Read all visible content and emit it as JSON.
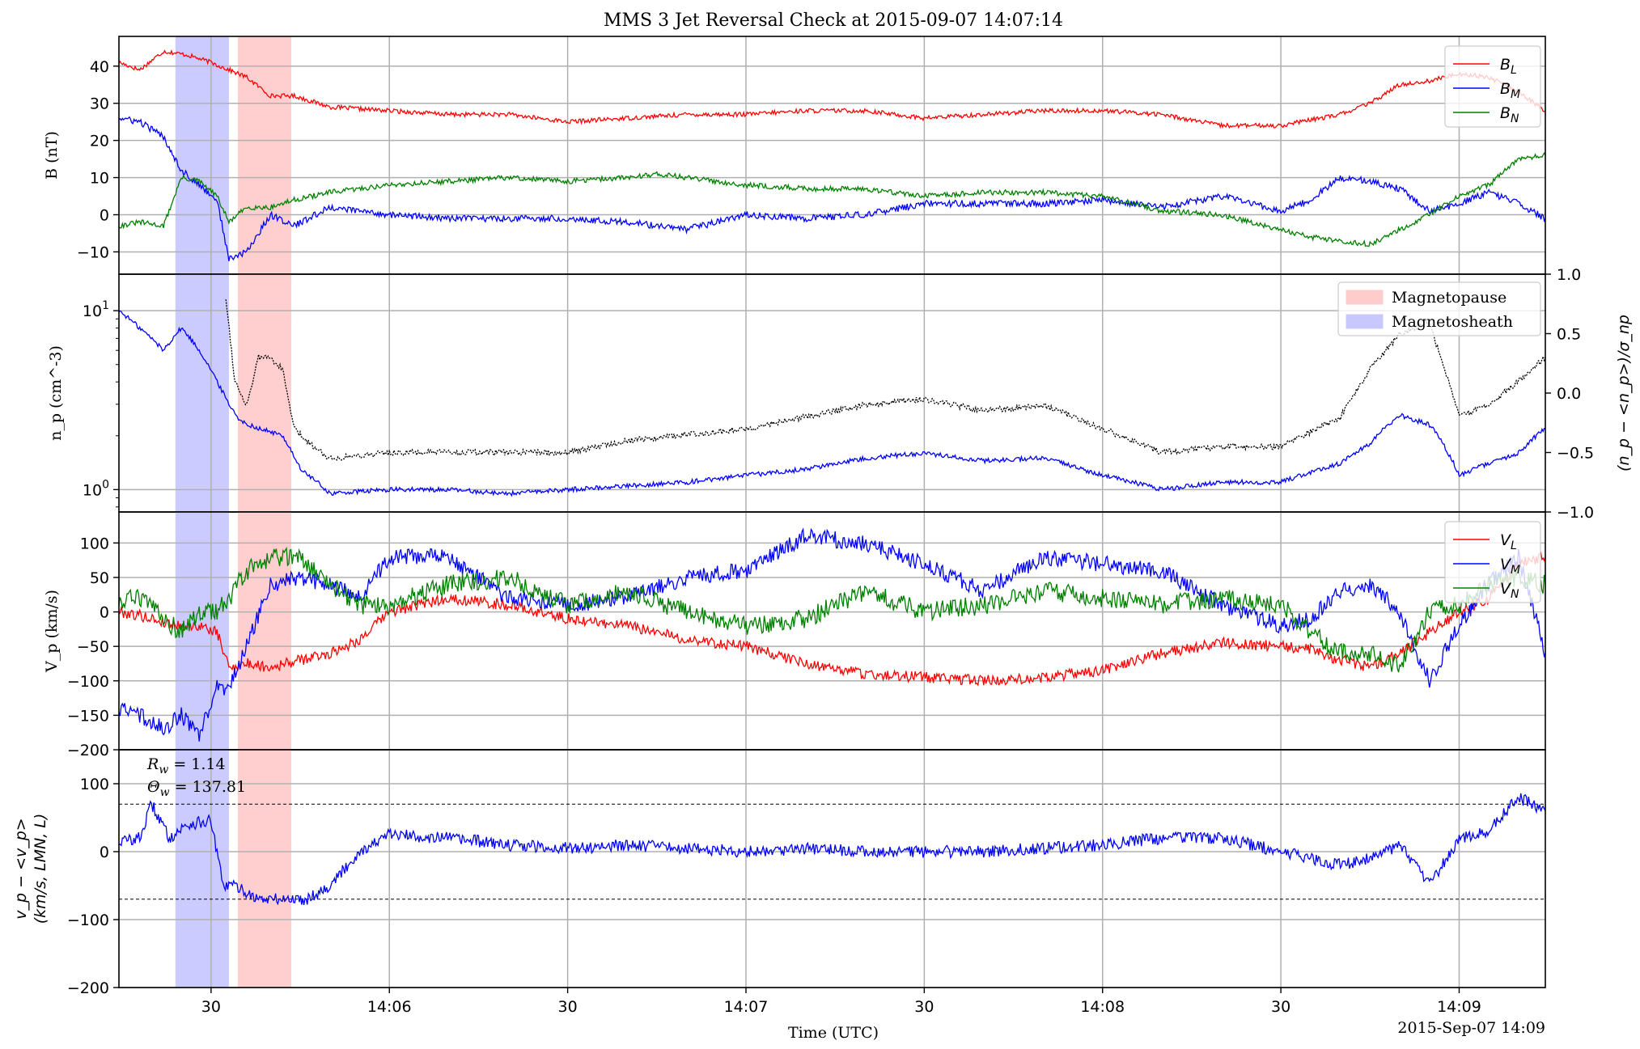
{
  "colors": {
    "red": "#ff0000",
    "blue": "#0000ff",
    "green": "#008000",
    "black": "#000000",
    "grid": "#b0b0b0",
    "magnetopause_fill": "#ffcccc",
    "magnetosheath_fill": "#c8c8ff"
  },
  "chart_data": {
    "type": "line",
    "title": "MMS 3 Jet Reversal Check at 2015-09-07 14:07:14",
    "xlabel": "Time (UTC)",
    "date_label": "2015-Sep-07 14:09",
    "x_range": [
      "14:05:14.5",
      "14:09:14.5"
    ],
    "x_ticks": [
      {
        "t": "14:05:30",
        "label": "30"
      },
      {
        "t": "14:06:00",
        "label": "14:06"
      },
      {
        "t": "14:06:30",
        "label": "30"
      },
      {
        "t": "14:07:00",
        "label": "14:07"
      },
      {
        "t": "14:07:30",
        "label": "30"
      },
      {
        "t": "14:08:00",
        "label": "14:08"
      },
      {
        "t": "14:08:30",
        "label": "30"
      },
      {
        "t": "14:09:00",
        "label": "14:09"
      }
    ],
    "shaded_regions": [
      {
        "name": "Magnetosheath",
        "start": "14:05:24",
        "end": "14:05:33",
        "color": "#c8c8ff"
      },
      {
        "name": "Magnetopause",
        "start": "14:05:34.5",
        "end": "14:05:43.5",
        "color": "#ffcccc"
      }
    ],
    "legend_regions": {
      "labels": [
        "Magnetopause",
        "Magnetosheath"
      ],
      "placement": "top-right of panel 2"
    },
    "panels": [
      {
        "ylabel": "B (nT)",
        "yscale": "linear",
        "ylim": [
          -16,
          48
        ],
        "yticks": [
          "−10",
          "0",
          "10",
          "20",
          "30",
          "40"
        ],
        "yticks_values": [
          -10,
          0,
          10,
          20,
          30,
          40
        ],
        "legend": {
          "placement": "top-right",
          "entries": [
            "B_L",
            "B_M",
            "B_N"
          ]
        },
        "series": [
          {
            "name": "B_L",
            "color": "#ff0000",
            "x": [
              "14:05:14.5",
              "14:05:18",
              "14:05:22",
              "14:05:26",
              "14:05:30",
              "14:05:33",
              "14:05:36",
              "14:05:40",
              "14:05:44",
              "14:05:50",
              "14:06:00",
              "14:06:10",
              "14:06:20",
              "14:06:30",
              "14:06:40",
              "14:06:50",
              "14:07:00",
              "14:07:10",
              "14:07:20",
              "14:07:30",
              "14:07:40",
              "14:07:50",
              "14:08:00",
              "14:08:10",
              "14:08:20",
              "14:08:30",
              "14:08:40",
              "14:08:45",
              "14:08:50",
              "14:08:55",
              "14:09:00",
              "14:09:05",
              "14:09:10",
              "14:09:14.5"
            ],
            "y": [
              41,
              39,
              44,
              43,
              41,
              39,
              37,
              32,
              32,
              29,
              28,
              27,
              27,
              25,
              26,
              27,
              27,
              28,
              28,
              26,
              27,
              28,
              28,
              27,
              24,
              24,
              27,
              30,
              35,
              36,
              38,
              37,
              33,
              28
            ]
          },
          {
            "name": "B_M",
            "color": "#0000ff",
            "x": [
              "14:05:14.5",
              "14:05:18",
              "14:05:22",
              "14:05:25",
              "14:05:28",
              "14:05:31",
              "14:05:33",
              "14:05:36",
              "14:05:40",
              "14:05:44",
              "14:05:50",
              "14:06:00",
              "14:06:10",
              "14:06:20",
              "14:06:30",
              "14:06:40",
              "14:06:50",
              "14:07:00",
              "14:07:10",
              "14:07:20",
              "14:07:30",
              "14:07:40",
              "14:07:50",
              "14:08:00",
              "14:08:10",
              "14:08:20",
              "14:08:30",
              "14:08:35",
              "14:08:40",
              "14:08:45",
              "14:08:50",
              "14:08:55",
              "14:09:00",
              "14:09:05",
              "14:09:10",
              "14:09:14.5"
            ],
            "y": [
              26,
              25,
              21,
              12,
              8,
              4,
              -12,
              -10,
              0,
              -3,
              2,
              0,
              -1,
              -1,
              -1,
              -2,
              -4,
              0,
              -1,
              0,
              3,
              3,
              3,
              4,
              2,
              5,
              1,
              4,
              10,
              9,
              7,
              1,
              3,
              6,
              3,
              -1
            ]
          },
          {
            "name": "B_N",
            "color": "#008000",
            "x": [
              "14:05:14.5",
              "14:05:18",
              "14:05:22",
              "14:05:25",
              "14:05:28",
              "14:05:31",
              "14:05:33",
              "14:05:36",
              "14:05:40",
              "14:05:44",
              "14:05:50",
              "14:06:00",
              "14:06:10",
              "14:06:20",
              "14:06:30",
              "14:06:40",
              "14:06:45",
              "14:06:50",
              "14:07:00",
              "14:07:10",
              "14:07:20",
              "14:07:30",
              "14:07:40",
              "14:07:50",
              "14:08:00",
              "14:08:10",
              "14:08:20",
              "14:08:30",
              "14:08:35",
              "14:08:40",
              "14:08:45",
              "14:08:50",
              "14:08:55",
              "14:09:00",
              "14:09:05",
              "14:09:10",
              "14:09:14.5"
            ],
            "y": [
              -3,
              -2,
              -3,
              10,
              9,
              5,
              -2,
              2,
              2,
              4,
              6,
              8,
              9,
              10,
              9,
              10,
              11,
              10,
              8,
              7,
              7,
              5,
              6,
              6,
              5,
              1,
              0,
              -4,
              -6,
              -7,
              -8,
              -4,
              0,
              5,
              8,
              15,
              16
            ]
          }
        ]
      },
      {
        "ylabel": "n_p (cm^-3)",
        "yscale": "log",
        "ylim": [
          0.75,
          16
        ],
        "yticks": [
          "10^0",
          "10^1"
        ],
        "yticks_values": [
          1,
          10
        ],
        "y2label": "(n_p − <n_p>)/σ_np",
        "y2lim": [
          -1.0,
          1.0
        ],
        "y2ticks": [
          "−1.0",
          "−0.5",
          "0.0",
          "0.5",
          "1.0"
        ],
        "y2ticks_values": [
          -1.0,
          -0.5,
          0.0,
          0.5,
          1.0
        ],
        "series": [
          {
            "name": "n_p",
            "color": "#0000ff",
            "x": [
              "14:05:14.5",
              "14:05:18",
              "14:05:22",
              "14:05:25",
              "14:05:28",
              "14:05:31",
              "14:05:33",
              "14:05:35",
              "14:05:38",
              "14:05:42",
              "14:05:45",
              "14:05:50",
              "14:06:00",
              "14:06:10",
              "14:06:20",
              "14:06:30",
              "14:06:40",
              "14:06:50",
              "14:07:00",
              "14:07:10",
              "14:07:20",
              "14:07:30",
              "14:07:40",
              "14:07:50",
              "14:08:00",
              "14:08:10",
              "14:08:20",
              "14:08:30",
              "14:08:40",
              "14:08:45",
              "14:08:50",
              "14:08:55",
              "14:09:00",
              "14:09:05",
              "14:09:10",
              "14:09:14.5"
            ],
            "y": [
              10,
              8,
              6,
              8,
              6,
              4,
              3,
              2.4,
              2.2,
              2.0,
              1.3,
              0.95,
              1.0,
              1.0,
              0.95,
              1.0,
              1.05,
              1.1,
              1.2,
              1.3,
              1.5,
              1.6,
              1.45,
              1.5,
              1.2,
              1.0,
              1.1,
              1.1,
              1.4,
              1.8,
              2.6,
              2.3,
              1.2,
              1.4,
              1.6,
              2.2
            ]
          },
          {
            "name": "(n_p − <n_p>)/σ_np",
            "color": "#000000",
            "axis": "y2",
            "dash": true,
            "x": [
              "14:05:32.5",
              "14:05:34",
              "14:05:36",
              "14:05:38",
              "14:05:40",
              "14:05:42",
              "14:05:44",
              "14:05:46",
              "14:05:50",
              "14:06:00",
              "14:06:10",
              "14:06:20",
              "14:06:30",
              "14:06:40",
              "14:06:50",
              "14:07:00",
              "14:07:10",
              "14:07:20",
              "14:07:30",
              "14:07:40",
              "14:07:50",
              "14:08:00",
              "14:08:10",
              "14:08:20",
              "14:08:30",
              "14:08:40",
              "14:08:45",
              "14:08:50",
              "14:08:55",
              "14:09:00",
              "14:09:05",
              "14:09:10",
              "14:09:14.5"
            ],
            "y": [
              0.8,
              0.1,
              -0.1,
              0.3,
              0.3,
              0.2,
              -0.3,
              -0.4,
              -0.55,
              -0.5,
              -0.5,
              -0.5,
              -0.5,
              -0.4,
              -0.35,
              -0.3,
              -0.2,
              -0.1,
              -0.05,
              -0.15,
              -0.1,
              -0.3,
              -0.5,
              -0.45,
              -0.45,
              -0.2,
              0.2,
              0.5,
              0.6,
              -0.2,
              -0.1,
              0.1,
              0.3
            ]
          }
        ]
      },
      {
        "ylabel": "V_p (km/s)",
        "yscale": "linear",
        "ylim": [
          -200,
          145
        ],
        "yticks": [
          "−200",
          "−150",
          "−100",
          "−50",
          "0",
          "50",
          "100"
        ],
        "yticks_values": [
          -200,
          -150,
          -100,
          -50,
          0,
          50,
          100
        ],
        "legend": {
          "placement": "top-right",
          "entries": [
            "V_L",
            "V_M",
            "V_N"
          ]
        },
        "series": [
          {
            "name": "V_L",
            "color": "#ff0000",
            "x": [
              "14:05:14.5",
              "14:05:18",
              "14:05:22",
              "14:05:25",
              "14:05:28",
              "14:05:31",
              "14:05:33",
              "14:05:36",
              "14:05:40",
              "14:05:45",
              "14:05:50",
              "14:05:55",
              "14:06:00",
              "14:06:10",
              "14:06:20",
              "14:06:30",
              "14:06:40",
              "14:06:50",
              "14:07:00",
              "14:07:10",
              "14:07:20",
              "14:07:30",
              "14:07:40",
              "14:07:50",
              "14:08:00",
              "14:08:10",
              "14:08:20",
              "14:08:30",
              "14:08:35",
              "14:08:40",
              "14:08:45",
              "14:08:50",
              "14:08:55",
              "14:09:00",
              "14:09:05",
              "14:09:10",
              "14:09:14.5"
            ],
            "y": [
              0,
              -5,
              -15,
              -20,
              -20,
              -30,
              -80,
              -75,
              -80,
              -70,
              -60,
              -40,
              0,
              20,
              10,
              -10,
              -20,
              -40,
              -50,
              -75,
              -90,
              -95,
              -100,
              -95,
              -85,
              -60,
              -45,
              -50,
              -55,
              -70,
              -80,
              -60,
              -30,
              0,
              20,
              70,
              80
            ]
          },
          {
            "name": "V_M",
            "color": "#0000ff",
            "x": [
              "14:05:14.5",
              "14:05:18",
              "14:05:22",
              "14:05:25",
              "14:05:28",
              "14:05:31",
              "14:05:33",
              "14:05:36",
              "14:05:40",
              "14:05:45",
              "14:05:50",
              "14:05:55",
              "14:06:00",
              "14:06:10",
              "14:06:20",
              "14:06:30",
              "14:06:40",
              "14:06:50",
              "14:07:00",
              "14:07:10",
              "14:07:20",
              "14:07:30",
              "14:07:40",
              "14:07:50",
              "14:08:00",
              "14:08:10",
              "14:08:20",
              "14:08:30",
              "14:08:35",
              "14:08:40",
              "14:08:45",
              "14:08:50",
              "14:08:55",
              "14:09:00",
              "14:09:05",
              "14:09:10",
              "14:09:14.5"
            ],
            "y": [
              -140,
              -150,
              -170,
              -150,
              -180,
              -110,
              -110,
              -50,
              40,
              50,
              40,
              20,
              80,
              80,
              20,
              10,
              20,
              50,
              60,
              110,
              100,
              70,
              30,
              80,
              70,
              60,
              10,
              -20,
              -10,
              30,
              40,
              0,
              -100,
              -20,
              40,
              80,
              -60
            ]
          },
          {
            "name": "V_N",
            "color": "#008000",
            "x": [
              "14:05:14.5",
              "14:05:18",
              "14:05:22",
              "14:05:25",
              "14:05:28",
              "14:05:31",
              "14:05:33",
              "14:05:36",
              "14:05:40",
              "14:05:45",
              "14:05:50",
              "14:05:55",
              "14:06:00",
              "14:06:10",
              "14:06:20",
              "14:06:30",
              "14:06:40",
              "14:06:50",
              "14:07:00",
              "14:07:10",
              "14:07:20",
              "14:07:30",
              "14:07:40",
              "14:07:50",
              "14:08:00",
              "14:08:10",
              "14:08:20",
              "14:08:30",
              "14:08:35",
              "14:08:40",
              "14:08:45",
              "14:08:50",
              "14:08:55",
              "14:09:00",
              "14:09:05",
              "14:09:10",
              "14:09:14.5"
            ],
            "y": [
              15,
              20,
              -10,
              -30,
              0,
              0,
              20,
              60,
              80,
              80,
              40,
              10,
              10,
              40,
              50,
              10,
              30,
              0,
              -20,
              -10,
              30,
              0,
              10,
              30,
              20,
              10,
              20,
              10,
              -30,
              -60,
              -60,
              -80,
              0,
              10,
              40,
              50,
              40
            ]
          }
        ]
      },
      {
        "ylabel": "v_p − <v_p> (km/s, LMN, L)",
        "yscale": "linear",
        "ylim": [
          -200,
          150
        ],
        "yticks": [
          "−200",
          "−100",
          "0",
          "100"
        ],
        "yticks_values": [
          -200,
          -100,
          0,
          100
        ],
        "hlines": [
          70,
          -70
        ],
        "annotations": [
          "R_w = 1.14",
          "Θ_w = 137.81"
        ],
        "series": [
          {
            "name": "v_p − <v_p>",
            "color": "#0000ff",
            "x": [
              "14:05:14.5",
              "14:05:18",
              "14:05:20",
              "14:05:23",
              "14:05:26",
              "14:05:30",
              "14:05:32",
              "14:05:34",
              "14:05:38",
              "14:05:42",
              "14:05:46",
              "14:05:50",
              "14:05:55",
              "14:06:00",
              "14:06:10",
              "14:06:20",
              "14:06:30",
              "14:06:40",
              "14:06:50",
              "14:07:00",
              "14:07:10",
              "14:07:20",
              "14:07:30",
              "14:07:40",
              "14:07:50",
              "14:08:00",
              "14:08:10",
              "14:08:20",
              "14:08:30",
              "14:08:40",
              "14:08:45",
              "14:08:50",
              "14:08:55",
              "14:09:00",
              "14:09:05",
              "14:09:10",
              "14:09:14.5"
            ],
            "y": [
              15,
              20,
              70,
              20,
              40,
              45,
              -50,
              -50,
              -70,
              -70,
              -70,
              -50,
              0,
              25,
              20,
              10,
              5,
              10,
              5,
              0,
              5,
              0,
              0,
              0,
              5,
              10,
              20,
              20,
              0,
              -20,
              -10,
              10,
              -50,
              20,
              30,
              80,
              60
            ]
          }
        ]
      }
    ]
  }
}
